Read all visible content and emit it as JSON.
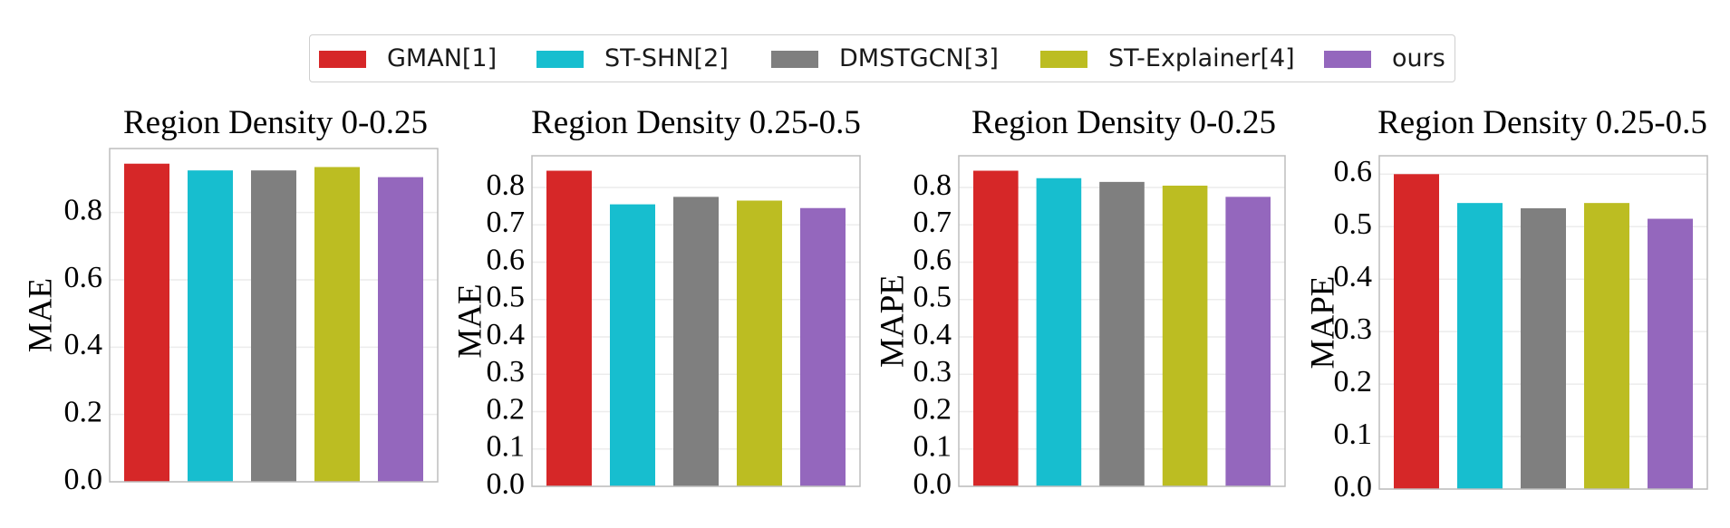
{
  "legend": [
    {
      "name": "GMAN[1]",
      "color": "#d62728"
    },
    {
      "name": "ST-SHN[2]",
      "color": "#17becf"
    },
    {
      "name": "DMSTGCN[3]",
      "color": "#7f7f7f"
    },
    {
      "name": "ST-Explainer[4]",
      "color": "#bcbd22"
    },
    {
      "name": "ours",
      "color": "#9467bd"
    }
  ],
  "chart_data": [
    {
      "type": "bar",
      "title": "Region Density 0-0.25",
      "ylabel": "MAE",
      "categories": [
        "GMAN[1]",
        "ST-SHN[2]",
        "DMSTGCN[3]",
        "ST-Explainer[4]",
        "ours"
      ],
      "values": [
        0.945,
        0.925,
        0.925,
        0.935,
        0.905
      ],
      "ylim": [
        0,
        0.99
      ],
      "yticks": [
        0.0,
        0.2,
        0.4,
        0.6,
        0.8
      ],
      "ytick_labels": [
        "0.0",
        "0.2",
        "0.4",
        "0.6",
        "0.8"
      ],
      "grid": true
    },
    {
      "type": "bar",
      "title": "Region Density 0.25-0.5",
      "ylabel": "MAE",
      "categories": [
        "GMAN[1]",
        "ST-SHN[2]",
        "DMSTGCN[3]",
        "ST-Explainer[4]",
        "ours"
      ],
      "values": [
        0.845,
        0.755,
        0.775,
        0.765,
        0.745
      ],
      "ylim": [
        0,
        0.885
      ],
      "yticks": [
        0.0,
        0.1,
        0.2,
        0.3,
        0.4,
        0.5,
        0.6,
        0.7,
        0.8
      ],
      "ytick_labels": [
        "0.0",
        "0.1",
        "0.2",
        "0.3",
        "0.4",
        "0.5",
        "0.6",
        "0.7",
        "0.8"
      ],
      "grid": true
    },
    {
      "type": "bar",
      "title": "Region Density 0-0.25",
      "ylabel": "MAPE",
      "categories": [
        "GMAN[1]",
        "ST-SHN[2]",
        "DMSTGCN[3]",
        "ST-Explainer[4]",
        "ours"
      ],
      "values": [
        0.845,
        0.825,
        0.815,
        0.805,
        0.775
      ],
      "ylim": [
        0,
        0.885
      ],
      "yticks": [
        0.0,
        0.1,
        0.2,
        0.3,
        0.4,
        0.5,
        0.6,
        0.7,
        0.8
      ],
      "ytick_labels": [
        "0.0",
        "0.1",
        "0.2",
        "0.3",
        "0.4",
        "0.5",
        "0.6",
        "0.7",
        "0.8"
      ],
      "grid": true
    },
    {
      "type": "bar",
      "title": "Region Density 0.25-0.5",
      "ylabel": "MAPE",
      "categories": [
        "GMAN[1]",
        "ST-SHN[2]",
        "DMSTGCN[3]",
        "ST-Explainer[4]",
        "ours"
      ],
      "values": [
        0.6,
        0.545,
        0.535,
        0.545,
        0.515
      ],
      "ylim": [
        0,
        0.635
      ],
      "yticks": [
        0.0,
        0.1,
        0.2,
        0.3,
        0.4,
        0.5,
        0.6
      ],
      "ytick_labels": [
        "0.0",
        "0.1",
        "0.2",
        "0.3",
        "0.4",
        "0.5",
        "0.6"
      ],
      "grid": true
    }
  ]
}
